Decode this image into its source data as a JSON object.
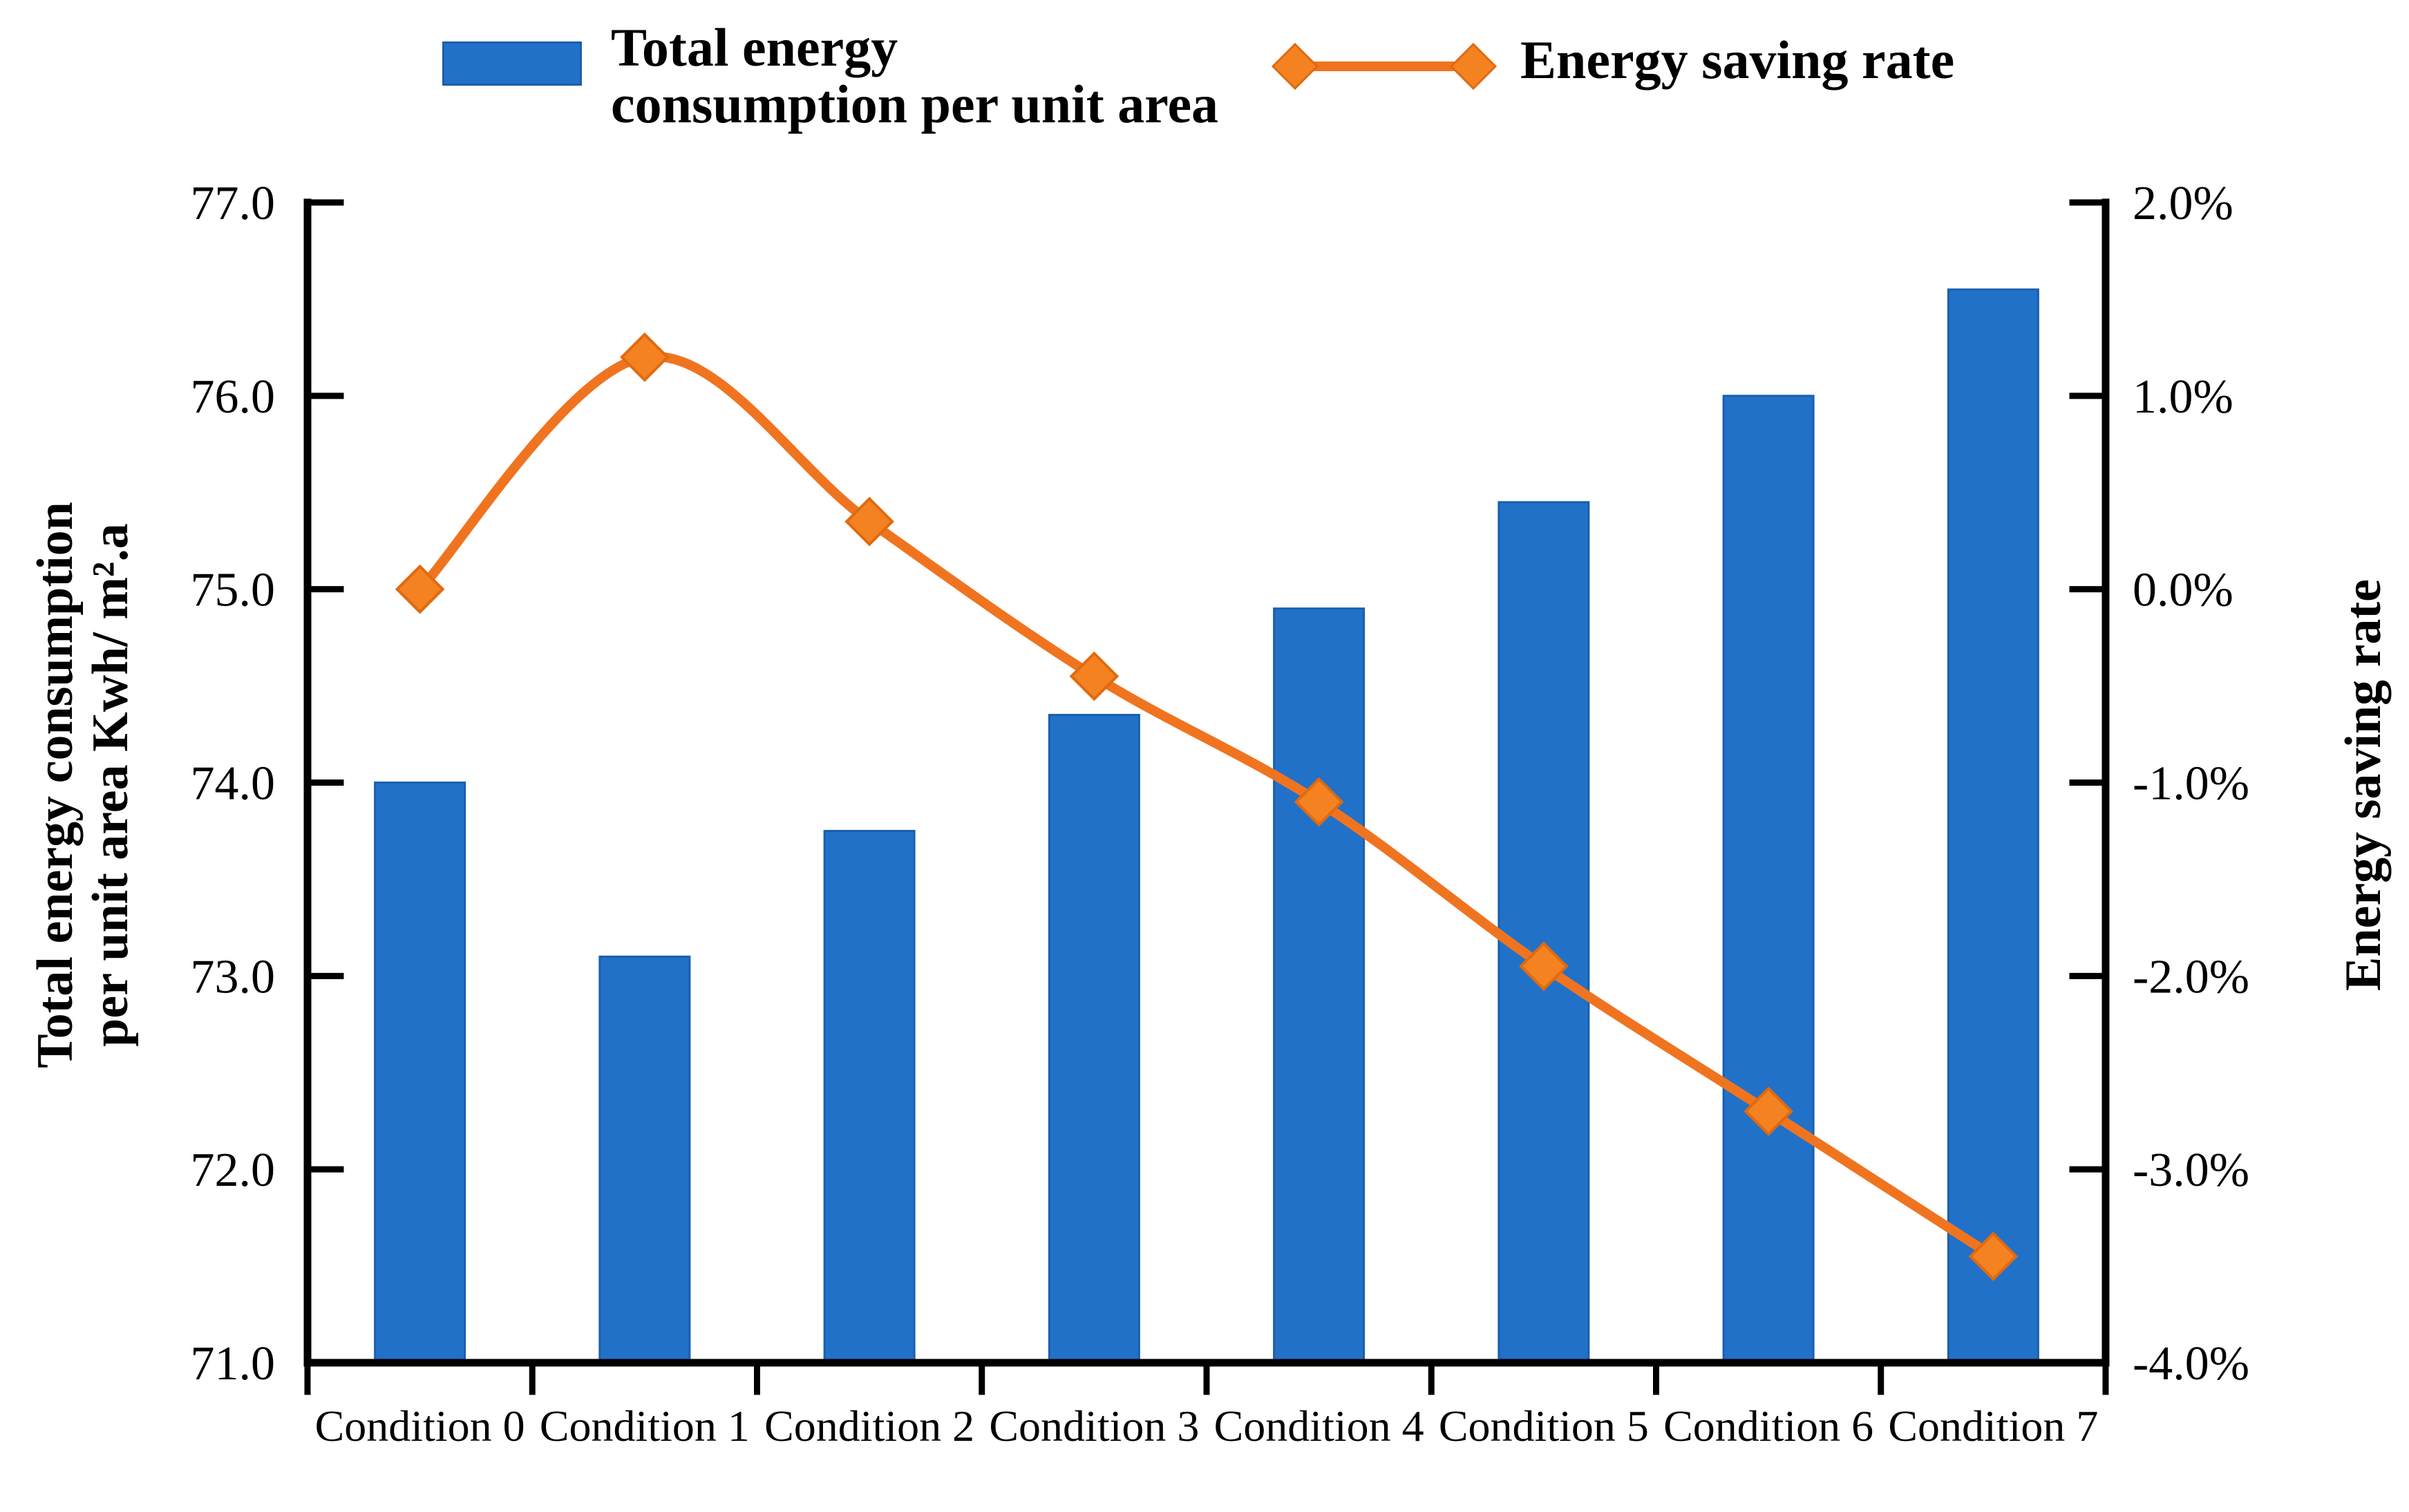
{
  "chart_data": {
    "type": "bar+line combo",
    "categories": [
      "Condition 0",
      "Condition 1",
      "Condition 2",
      "Condition 3",
      "Condition 4",
      "Condition 5",
      "Condition 6",
      "Condition 7"
    ],
    "series": [
      {
        "name": "Total energy consumption per unit area",
        "type": "bar",
        "axis": "left",
        "values": [
          74.0,
          73.1,
          73.75,
          74.35,
          74.9,
          75.45,
          76.0,
          76.55
        ]
      },
      {
        "name": "Energy saving rate",
        "type": "line",
        "axis": "right",
        "values_percent": [
          0.0,
          1.2,
          0.35,
          -0.45,
          -1.1,
          -1.95,
          -2.7,
          -3.45
        ]
      }
    ],
    "left_axis": {
      "title_lines": [
        "Total energy consumption",
        "per unit area Kwh/ m².a"
      ],
      "min": 71.0,
      "max": 77.0,
      "tick_step": 1.0,
      "tick_labels": [
        "77.0",
        "76.0",
        "75.0",
        "74.0",
        "73.0",
        "72.0",
        "71.0"
      ]
    },
    "right_axis": {
      "title": "Energy saving rate",
      "min": -4.0,
      "max": 2.0,
      "tick_step": 1.0,
      "tick_labels": [
        "2.0%",
        "1.0%",
        "0.0%",
        "-1.0%",
        "-2.0%",
        "-3.0%",
        "-4.0%"
      ]
    },
    "grid": "off",
    "legend_position": "top",
    "line_style": "smooth"
  },
  "legend": {
    "bar_label_lines": [
      "Total energy",
      "consumption per unit area"
    ],
    "line_label": "Energy saving rate"
  },
  "colors": {
    "bar_fill": "#2271c8",
    "bar_edge": "#1a5fae",
    "line_stroke": "#fticket07420",
    "line": "#f07420",
    "marker_fill": "#f58220",
    "marker_edge": "#e06a10",
    "axis": "#000000",
    "text": "#000000",
    "background": "#ffffff"
  }
}
